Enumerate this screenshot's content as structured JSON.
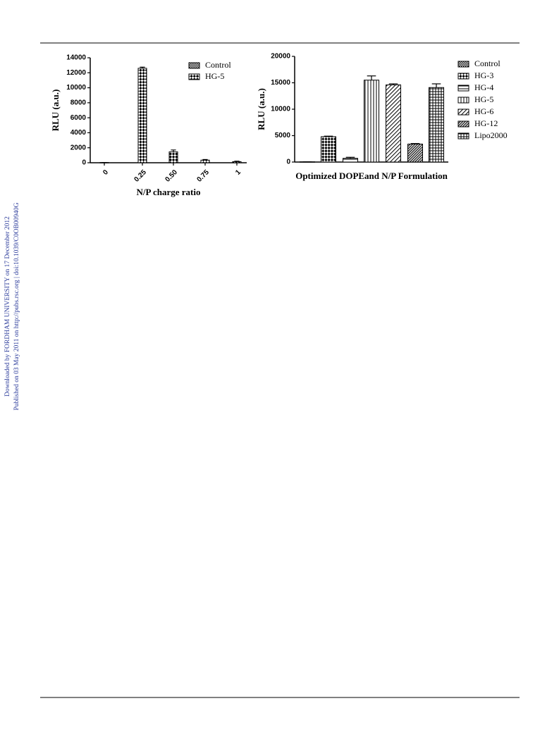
{
  "side_note": [
    "Downloaded by FORDHAM UNIVERSITY on 17 December 2012",
    "Published on 03 May 2011 on http://pubs.rsc.org | doi:10.1039/C0OB00940G"
  ],
  "chart_data": [
    {
      "type": "bar",
      "ylabel": "RLU (a.u.)",
      "xlabel": "N/P charge ratio",
      "categories": [
        "0",
        "0.25",
        "0.50",
        "0.75",
        "1"
      ],
      "ylim": [
        0,
        14000
      ],
      "yticks": [
        0,
        2000,
        4000,
        6000,
        8000,
        10000,
        12000,
        14000
      ],
      "legend": "top-right",
      "series": [
        {
          "name": "Control",
          "color": "#000000",
          "pattern": "fine-check",
          "values": [
            30,
            null,
            null,
            null,
            null
          ],
          "errors": [
            0,
            null,
            null,
            null,
            null
          ]
        },
        {
          "name": "HG-5",
          "color": "#000000",
          "pattern": "check",
          "values": [
            null,
            12600,
            1450,
            350,
            150
          ],
          "errors": [
            null,
            150,
            250,
            80,
            60
          ]
        }
      ]
    },
    {
      "type": "bar",
      "ylabel": "RLU (a.u.)",
      "xlabel": "Optimized DOPEand N/P Formulation",
      "ylim": [
        0,
        20000
      ],
      "yticks": [
        0,
        5000,
        10000,
        15000,
        20000
      ],
      "legend": "right",
      "series": [
        {
          "name": "Control",
          "color": "#000000",
          "pattern": "fine-check",
          "values": [
            40
          ],
          "errors": [
            0
          ]
        },
        {
          "name": "HG-3",
          "color": "#000000",
          "pattern": "check",
          "values": [
            4800
          ],
          "errors": [
            100
          ]
        },
        {
          "name": "HG-4",
          "color": "#000000",
          "pattern": "horizontal",
          "values": [
            700
          ],
          "errors": [
            200
          ]
        },
        {
          "name": "HG-5",
          "color": "#000000",
          "pattern": "vertical",
          "values": [
            15500
          ],
          "errors": [
            800
          ]
        },
        {
          "name": "HG-6",
          "color": "#000000",
          "pattern": "diagonal",
          "values": [
            14600
          ],
          "errors": [
            200
          ]
        },
        {
          "name": "HG-12",
          "color": "#000000",
          "pattern": "dense-diagonal",
          "values": [
            3400
          ],
          "errors": [
            100
          ]
        },
        {
          "name": "Lipo2000",
          "color": "#000000",
          "pattern": "grid",
          "values": [
            14100
          ],
          "errors": [
            700
          ]
        }
      ]
    }
  ]
}
